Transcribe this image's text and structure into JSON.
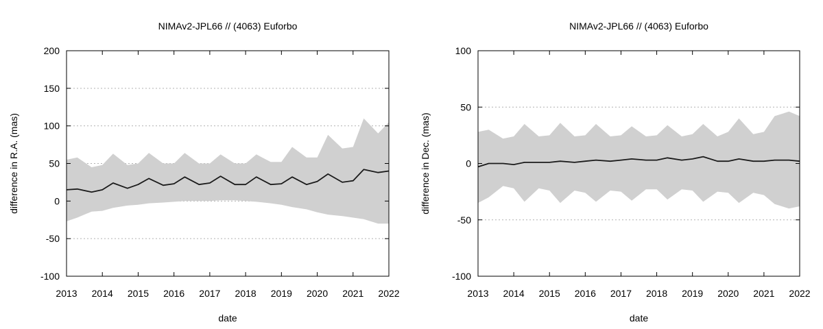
{
  "colors": {
    "band": "#d0d0d0",
    "line": "#1a1a1a",
    "grid": "#b0b0b0",
    "axis": "#000000"
  },
  "chart_data": [
    {
      "type": "area",
      "title": "NIMAv2-JPL66 // (4063) Euforbo",
      "xlabel": "date",
      "ylabel": "difference in R.A. (mas)",
      "xlim": [
        "2013",
        "2022"
      ],
      "ylim": [
        -100,
        200
      ],
      "xticks": [
        "2013",
        "2014",
        "2015",
        "2016",
        "2017",
        "2018",
        "2019",
        "2020",
        "2021",
        "2022"
      ],
      "yticks": [
        -100,
        -50,
        0,
        50,
        100,
        150,
        200
      ],
      "grid": "horizontal-dotted",
      "series": [
        {
          "role": "uncertainty-upper",
          "x": [
            2013.0,
            2013.3,
            2013.7,
            2014.0,
            2014.3,
            2014.7,
            2015.0,
            2015.3,
            2015.7,
            2016.0,
            2016.3,
            2016.7,
            2017.0,
            2017.3,
            2017.7,
            2018.0,
            2018.3,
            2018.7,
            2019.0,
            2019.3,
            2019.7,
            2020.0,
            2020.3,
            2020.7,
            2021.0,
            2021.3,
            2021.7,
            2022.0
          ],
          "values": [
            55,
            58,
            45,
            48,
            63,
            48,
            50,
            64,
            50,
            50,
            64,
            50,
            50,
            62,
            50,
            50,
            62,
            52,
            52,
            72,
            58,
            58,
            88,
            70,
            72,
            110,
            90,
            105
          ]
        },
        {
          "role": "uncertainty-lower",
          "x": [
            2013.0,
            2013.3,
            2013.7,
            2014.0,
            2014.3,
            2014.7,
            2015.0,
            2015.3,
            2015.7,
            2016.0,
            2016.3,
            2016.7,
            2017.0,
            2017.3,
            2017.7,
            2018.0,
            2018.3,
            2018.7,
            2019.0,
            2019.3,
            2019.7,
            2020.0,
            2020.3,
            2020.7,
            2021.0,
            2021.3,
            2021.7,
            2022.0
          ],
          "values": [
            -27,
            -22,
            -14,
            -13,
            -9,
            -6,
            -5,
            -3,
            -2,
            -1,
            0,
            0,
            0,
            1,
            1,
            0,
            -1,
            -3,
            -5,
            -8,
            -11,
            -15,
            -18,
            -20,
            -22,
            -24,
            -30,
            -30
          ]
        },
        {
          "role": "difference",
          "x": [
            2013.0,
            2013.3,
            2013.7,
            2014.0,
            2014.3,
            2014.7,
            2015.0,
            2015.3,
            2015.7,
            2016.0,
            2016.3,
            2016.7,
            2017.0,
            2017.3,
            2017.7,
            2018.0,
            2018.3,
            2018.7,
            2019.0,
            2019.3,
            2019.7,
            2020.0,
            2020.3,
            2020.7,
            2021.0,
            2021.3,
            2021.7,
            2022.0
          ],
          "values": [
            15,
            16,
            12,
            15,
            24,
            17,
            22,
            30,
            21,
            23,
            32,
            22,
            24,
            33,
            22,
            22,
            32,
            22,
            23,
            32,
            22,
            26,
            36,
            25,
            27,
            42,
            38,
            40
          ]
        }
      ]
    },
    {
      "type": "area",
      "title": "NIMAv2-JPL66 // (4063) Euforbo",
      "xlabel": "date",
      "ylabel": "difference in Dec. (mas)",
      "xlim": [
        "2013",
        "2022"
      ],
      "ylim": [
        -100,
        100
      ],
      "xticks": [
        "2013",
        "2014",
        "2015",
        "2016",
        "2017",
        "2018",
        "2019",
        "2020",
        "2021",
        "2022"
      ],
      "yticks": [
        -100,
        -50,
        0,
        50,
        100
      ],
      "grid": "horizontal-dotted",
      "series": [
        {
          "role": "uncertainty-upper",
          "x": [
            2013.0,
            2013.3,
            2013.7,
            2014.0,
            2014.3,
            2014.7,
            2015.0,
            2015.3,
            2015.7,
            2016.0,
            2016.3,
            2016.7,
            2017.0,
            2017.3,
            2017.7,
            2018.0,
            2018.3,
            2018.7,
            2019.0,
            2019.3,
            2019.7,
            2020.0,
            2020.3,
            2020.7,
            2021.0,
            2021.3,
            2021.7,
            2022.0
          ],
          "values": [
            28,
            30,
            22,
            24,
            35,
            24,
            25,
            36,
            24,
            25,
            35,
            24,
            25,
            33,
            24,
            25,
            34,
            24,
            26,
            35,
            24,
            28,
            40,
            26,
            28,
            42,
            46,
            42
          ]
        },
        {
          "role": "uncertainty-lower",
          "x": [
            2013.0,
            2013.3,
            2013.7,
            2014.0,
            2014.3,
            2014.7,
            2015.0,
            2015.3,
            2015.7,
            2016.0,
            2016.3,
            2016.7,
            2017.0,
            2017.3,
            2017.7,
            2018.0,
            2018.3,
            2018.7,
            2019.0,
            2019.3,
            2019.7,
            2020.0,
            2020.3,
            2020.7,
            2021.0,
            2021.3,
            2021.7,
            2022.0
          ],
          "values": [
            -35,
            -30,
            -20,
            -22,
            -34,
            -22,
            -24,
            -35,
            -24,
            -26,
            -34,
            -24,
            -25,
            -33,
            -23,
            -23,
            -32,
            -23,
            -24,
            -34,
            -25,
            -26,
            -35,
            -26,
            -28,
            -36,
            -40,
            -38
          ]
        },
        {
          "role": "difference",
          "x": [
            2013.0,
            2013.3,
            2013.7,
            2014.0,
            2014.3,
            2014.7,
            2015.0,
            2015.3,
            2015.7,
            2016.0,
            2016.3,
            2016.7,
            2017.0,
            2017.3,
            2017.7,
            2018.0,
            2018.3,
            2018.7,
            2019.0,
            2019.3,
            2019.7,
            2020.0,
            2020.3,
            2020.7,
            2021.0,
            2021.3,
            2021.7,
            2022.0
          ],
          "values": [
            -3,
            0,
            0,
            -1,
            1,
            1,
            1,
            2,
            1,
            2,
            3,
            2,
            3,
            4,
            3,
            3,
            5,
            3,
            4,
            6,
            2,
            2,
            4,
            2,
            2,
            3,
            3,
            2
          ]
        }
      ]
    }
  ]
}
